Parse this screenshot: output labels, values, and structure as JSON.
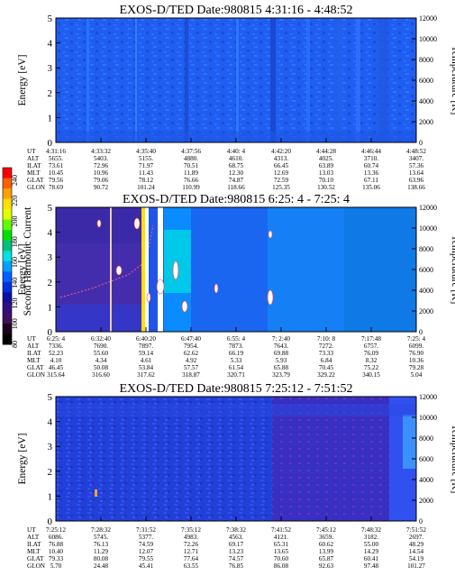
{
  "figure": {
    "colorbar": {
      "label": "Second Harmonic Current",
      "ticks": [
        "240",
        "220",
        "200",
        "180",
        "160",
        "140",
        "120",
        "100",
        "80"
      ],
      "colors": [
        "#ff0000",
        "#ff6000",
        "#ffa000",
        "#ffe000",
        "#e0ff00",
        "#60ff00",
        "#00e000",
        "#00c080",
        "#00e0e0",
        "#00a0ff",
        "#0060ff",
        "#0030e0",
        "#1010a0",
        "#301080",
        "#401060",
        "#200020",
        "#000000"
      ]
    },
    "row_labels": [
      "UT",
      "ALT",
      "ILAT",
      "MLT",
      "GLAT",
      "GLON"
    ]
  },
  "chart_data": [
    {
      "type": "heatmap",
      "title": "EXOS-D/TED   Date:980815  4:31:16 - 4:48:52",
      "ylabel_left": "Energy [eV]",
      "ylabel_right": "Temperature [K]",
      "ylim": [
        0,
        5
      ],
      "ylim_right": [
        0,
        12000
      ],
      "yticks_left": [
        "0",
        "1",
        "2",
        "3",
        "4",
        "5"
      ],
      "yticks_right": [
        "0",
        "2000",
        "4000",
        "6000",
        "8000",
        "10000",
        "12000"
      ],
      "columns": [
        [
          "4:31:16",
          "5655.",
          "73.61",
          "10.45",
          "79.56",
          "78.69"
        ],
        [
          "4:33:32",
          "5403.",
          "72.96",
          "10.96",
          "79.06",
          "90.72"
        ],
        [
          "4:35:40",
          "5155.",
          "71.97",
          "11.43",
          "78.12",
          "101.24"
        ],
        [
          "4:37:56",
          "4880.",
          "70.51",
          "11.89",
          "76.66",
          "110.99"
        ],
        [
          "4:40: 4",
          "4610.",
          "68.75",
          "12.30",
          "74.87",
          "118.66"
        ],
        [
          "4:42:20",
          "4313.",
          "66.45",
          "12.69",
          "72.59",
          "125.35"
        ],
        [
          "4:44:28",
          "4025.",
          "63.89",
          "13.03",
          "70.10",
          "130.52"
        ],
        [
          "4:46:44",
          "3710.",
          "60.74",
          "13.36",
          "67.11",
          "135.06"
        ],
        [
          "4:48:52",
          "3407.",
          "57.36",
          "13.64",
          "63.96",
          "138.66"
        ]
      ]
    },
    {
      "type": "heatmap",
      "title": "EXOS-D/TED   Date:980815  6:25: 4 - 7:25: 4",
      "ylabel_left": "Energy [eV]",
      "ylabel_right": "Temperature [K]",
      "ylim": [
        0,
        5
      ],
      "ylim_right": [
        0,
        12000
      ],
      "yticks_left": [
        "0",
        "1",
        "2",
        "3",
        "4",
        "5"
      ],
      "yticks_right": [
        "0",
        "2000",
        "4000",
        "6000",
        "8000",
        "10000",
        "12000"
      ],
      "columns": [
        [
          "6:25: 4",
          "7336.",
          "52.23",
          "4.10",
          "46.45",
          "315.64"
        ],
        [
          "6:32:40",
          "7690.",
          "55.60",
          "4.34",
          "50.08",
          "316.60"
        ],
        [
          "6:40:20",
          "7897.",
          "59.14",
          "4.61",
          "53.84",
          "317.62"
        ],
        [
          "6:47:40",
          "7954.",
          "62.62",
          "4.92",
          "57.57",
          "318.87"
        ],
        [
          "6:55: 4",
          "7873.",
          "66.19",
          "5.33",
          "61.54",
          "320.71"
        ],
        [
          "7: 2:40",
          "7643.",
          "69.88",
          "5.93",
          "65.88",
          "323.79"
        ],
        [
          "7:10: 8",
          "7272.",
          "73.33",
          "6.84",
          "70.45",
          "329.22"
        ],
        [
          "7:17:48",
          "6757.",
          "76.09",
          "8.32",
          "75.22",
          "340.15"
        ],
        [
          "7:25: 4",
          "6099.",
          "76.90",
          "10.36",
          "79.28",
          "5.04"
        ]
      ]
    },
    {
      "type": "heatmap",
      "title": "EXOS-D/TED   Date:980815  7:25:12 - 7:51:52",
      "ylabel_left": "Energy [eV]",
      "ylabel_right": "Temperature [K]",
      "ylim": [
        0,
        5
      ],
      "ylim_right": [
        0,
        12000
      ],
      "yticks_left": [
        "0",
        "1",
        "2",
        "3",
        "4",
        "5"
      ],
      "yticks_right": [
        "0",
        "2000",
        "4000",
        "6000",
        "8000",
        "10000",
        "12000"
      ],
      "columns": [
        [
          "7:25:12",
          "6086.",
          "76.88",
          "10.40",
          "79.33",
          "5.70"
        ],
        [
          "7:28:32",
          "5745.",
          "76.13",
          "11.29",
          "80.08",
          "24.48"
        ],
        [
          "7:31:52",
          "5377.",
          "74.59",
          "12.07",
          "79.55",
          "45.41"
        ],
        [
          "7:35:12",
          "4983.",
          "72.26",
          "12.71",
          "77.64",
          "63.55"
        ],
        [
          "7:38:32",
          "4563.",
          "69.17",
          "13.23",
          "74.57",
          "76.85"
        ],
        [
          "7:41:52",
          "4121.",
          "65.31",
          "13.65",
          "70.60",
          "86.08"
        ],
        [
          "7:45:12",
          "3659.",
          "60.62",
          "13.99",
          "65.87",
          "92.63"
        ],
        [
          "7:48:32",
          "3182.",
          "55.00",
          "14.29",
          "60.41",
          "97.48"
        ],
        [
          "7:51:52",
          "2697.",
          "48.29",
          "14.54",
          "54.19",
          "101.27"
        ]
      ]
    }
  ]
}
